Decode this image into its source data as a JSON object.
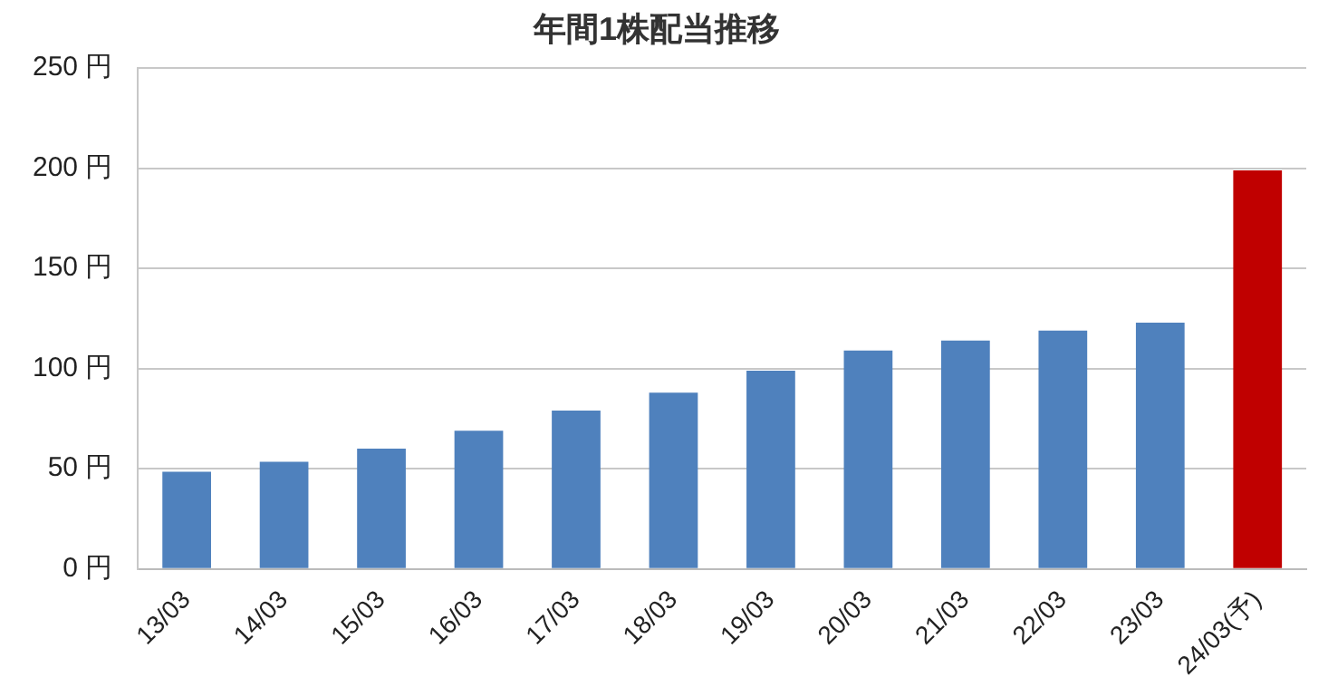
{
  "chart_data": {
    "type": "bar",
    "title": "年間1株配当推移",
    "categories": [
      "13/03",
      "14/03",
      "15/03",
      "16/03",
      "17/03",
      "18/03",
      "19/03",
      "20/03",
      "21/03",
      "22/03",
      "23/03",
      "24/03(予)"
    ],
    "values": [
      48.5,
      53.5,
      60,
      69,
      79,
      88,
      99,
      109,
      114,
      119,
      123,
      199
    ],
    "colors": [
      "#4f81bd",
      "#4f81bd",
      "#4f81bd",
      "#4f81bd",
      "#4f81bd",
      "#4f81bd",
      "#4f81bd",
      "#4f81bd",
      "#4f81bd",
      "#4f81bd",
      "#4f81bd",
      "#c00000"
    ],
    "ylim": [
      0,
      250
    ],
    "yticks": [
      {
        "value": 0,
        "label": "0 円"
      },
      {
        "value": 50,
        "label": "50 円"
      },
      {
        "value": 100,
        "label": "100 円"
      },
      {
        "value": 150,
        "label": "150 円"
      },
      {
        "value": 200,
        "label": "200 円"
      },
      {
        "value": 250,
        "label": "250 円"
      }
    ],
    "grid": "y",
    "legend": false
  }
}
